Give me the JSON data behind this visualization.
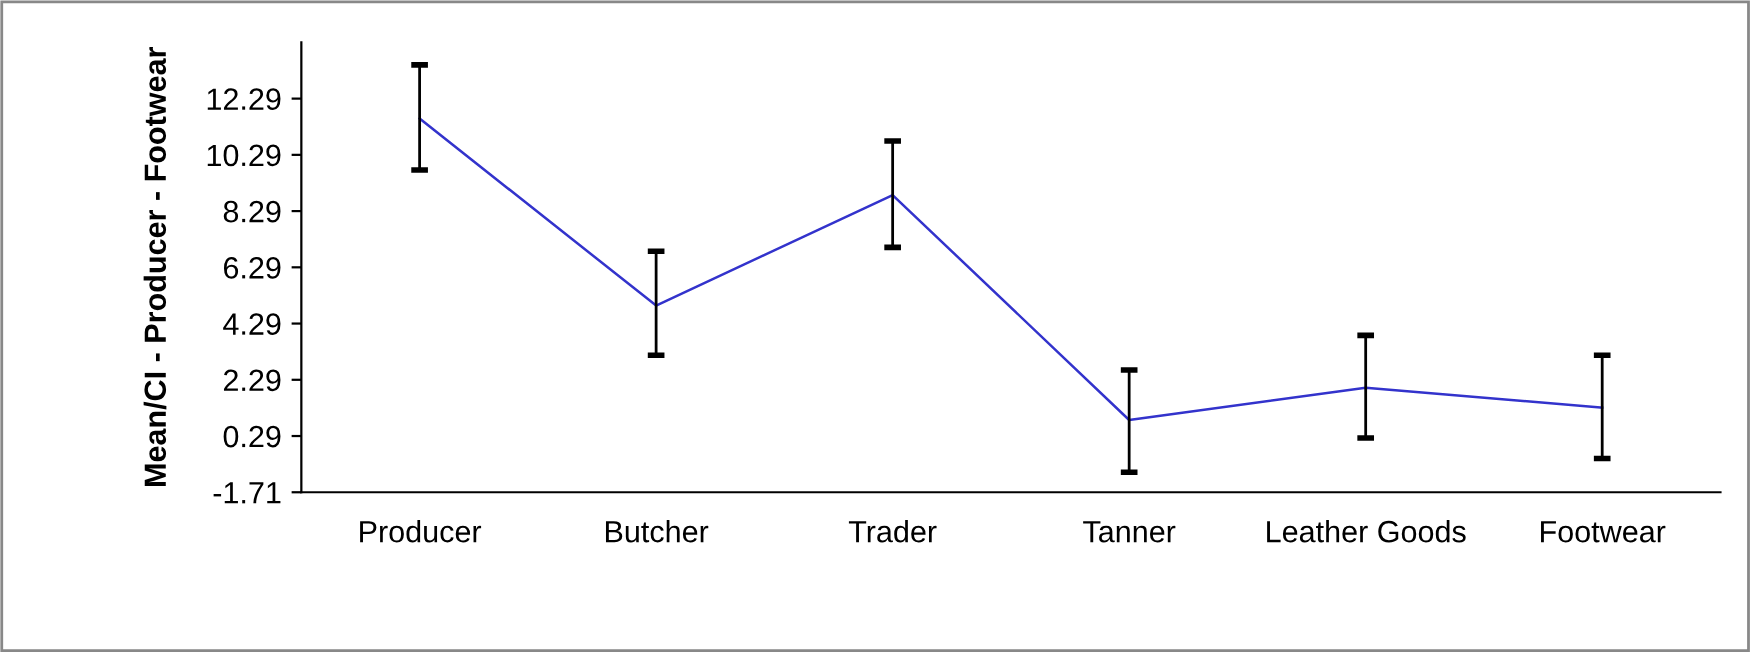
{
  "chart_data": {
    "type": "line",
    "ylabel": "Mean/CI - Producer - Footwear",
    "categories": [
      "Producer",
      "Butcher",
      "Trader",
      "Tanner",
      "Leather Goods",
      "Footwear"
    ],
    "series": [
      {
        "color": "#3333cc",
        "values": [
          11.58,
          4.93,
          8.86,
          0.86,
          2.01,
          1.3
        ],
        "errors": [
          [
            9.75,
            13.49
          ],
          [
            3.16,
            6.86
          ],
          [
            7.0,
            10.78
          ],
          [
            -1.0,
            2.64
          ],
          [
            0.22,
            3.87
          ],
          [
            -0.51,
            3.16
          ]
        ]
      }
    ],
    "ylim": [
      -1.71,
      14.29
    ],
    "yticks": [
      -1.71,
      0.29,
      2.29,
      4.29,
      6.29,
      8.29,
      10.29,
      12.29
    ],
    "grid": false,
    "legend": false
  }
}
